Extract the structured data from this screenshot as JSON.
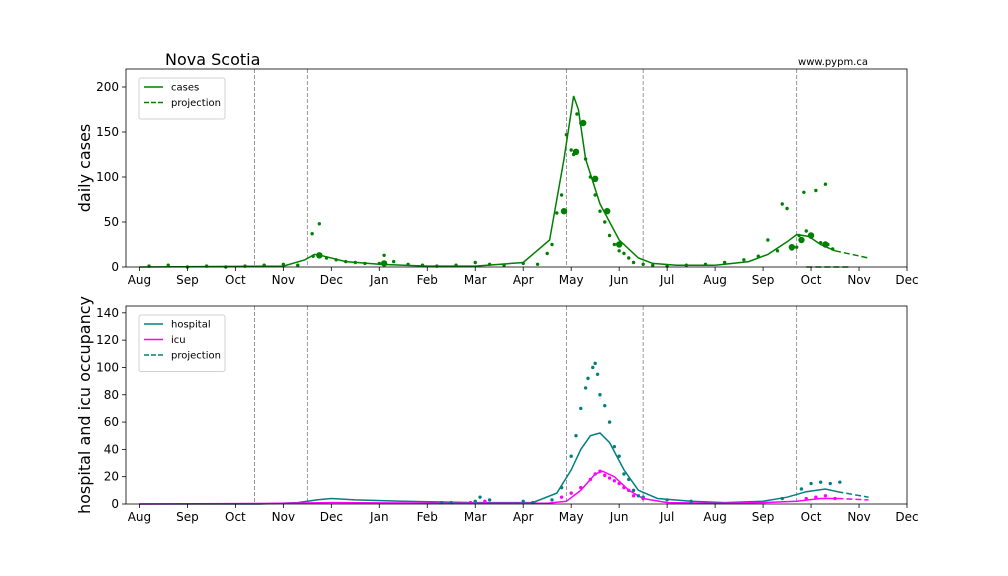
{
  "title": "Nova Scotia",
  "source": "www.pypm.ca",
  "colors": {
    "cases": "#008000",
    "hospital": "#008080",
    "icu": "#ff00ff",
    "vline": "#808080"
  },
  "x_ticks": [
    "Aug",
    "Sep",
    "Oct",
    "Nov",
    "Dec",
    "Jan",
    "Feb",
    "Mar",
    "Apr",
    "May",
    "Jun",
    "Jul",
    "Aug",
    "Sep",
    "Oct",
    "Nov",
    "Dec"
  ],
  "chart_data": [
    {
      "type": "line",
      "ylabel": "daily cases",
      "ylim": [
        0,
        220
      ],
      "yticks": [
        0,
        50,
        100,
        150,
        200
      ],
      "xlim_months": [
        -0.28,
        16.0
      ],
      "vlines_months": [
        2.4,
        3.5,
        8.9,
        10.5,
        13.7
      ],
      "legend": {
        "position": "top-left",
        "entries": [
          {
            "label": "cases",
            "color": "#008000",
            "style": "solid"
          },
          {
            "label": "projection",
            "color": "#008000",
            "style": "dashed"
          }
        ]
      },
      "series": [
        {
          "name": "cases",
          "kind": "line",
          "color": "#008000",
          "x": [
            0,
            3,
            3.45,
            3.65,
            3.85,
            4.3,
            5,
            6,
            7,
            8,
            8.55,
            8.85,
            9.05,
            9.15,
            9.3,
            9.6,
            10,
            10.4,
            10.7,
            11.2,
            12,
            12.7,
            13.1,
            13.5,
            13.7,
            13.95,
            14.2,
            14.5
          ],
          "y": [
            0,
            1,
            8,
            14,
            12,
            6,
            3,
            1,
            1,
            5,
            30,
            120,
            190,
            175,
            120,
            70,
            30,
            10,
            4,
            2,
            2,
            6,
            14,
            28,
            36,
            34,
            25,
            18
          ]
        },
        {
          "name": "projection",
          "kind": "dashed",
          "color": "#008000",
          "x": [
            14.5,
            15.2
          ],
          "y": [
            18,
            10
          ]
        },
        {
          "name": "projection-floor",
          "kind": "dashed",
          "color": "#008000",
          "x": [
            13.9,
            14.8
          ],
          "y": [
            0,
            0
          ]
        },
        {
          "name": "daily points",
          "kind": "dots",
          "color": "#008000",
          "x": [
            0.2,
            0.6,
            1.0,
            1.4,
            1.8,
            2.2,
            2.6,
            3.0,
            3.3,
            3.6,
            3.62,
            3.75,
            3.9,
            4.1,
            4.3,
            4.5,
            4.7,
            5.0,
            5.1,
            5.3,
            5.6,
            5.9,
            6.2,
            6.6,
            7.0,
            7.3,
            7.6,
            8.0,
            8.3,
            8.5,
            8.6,
            8.7,
            8.8,
            8.9,
            9.0,
            9.05,
            9.12,
            9.2,
            9.3,
            9.4,
            9.5,
            9.6,
            9.7,
            9.8,
            9.9,
            10.0,
            10.1,
            10.2,
            10.3,
            10.5,
            10.7,
            11.0,
            11.4,
            11.8,
            12.2,
            12.6,
            12.9,
            13.1,
            13.3,
            13.4,
            13.5,
            13.6,
            13.7,
            13.75,
            13.85,
            13.9,
            14.0,
            14.1,
            14.2,
            14.3,
            14.35,
            14.45
          ],
          "y": [
            1,
            2,
            0,
            1,
            0,
            1,
            2,
            3,
            2,
            37,
            12,
            48,
            10,
            8,
            6,
            5,
            4,
            4,
            13,
            6,
            3,
            2,
            1,
            2,
            5,
            3,
            2,
            4,
            3,
            15,
            25,
            60,
            80,
            147,
            130,
            125,
            170,
            160,
            120,
            100,
            80,
            62,
            50,
            35,
            25,
            18,
            15,
            10,
            5,
            3,
            2,
            1,
            2,
            3,
            5,
            8,
            12,
            30,
            18,
            70,
            65,
            20,
            22,
            35,
            83,
            40,
            33,
            85,
            27,
            92,
            25,
            20
          ]
        },
        {
          "name": "weekly points",
          "kind": "bigdots",
          "color": "#008000",
          "x": [
            3.75,
            5.1,
            8.85,
            9.1,
            9.25,
            9.5,
            9.75,
            10.0,
            13.6,
            13.8,
            14.0,
            14.3
          ],
          "y": [
            13,
            4,
            62,
            128,
            160,
            98,
            62,
            25,
            22,
            30,
            35,
            25
          ]
        }
      ]
    },
    {
      "type": "line",
      "ylabel": "hospital and icu occupancy",
      "ylim": [
        0,
        145
      ],
      "yticks": [
        0,
        20,
        40,
        60,
        80,
        100,
        120,
        140
      ],
      "xlim_months": [
        -0.28,
        16.0
      ],
      "vlines_months": [
        2.4,
        3.5,
        8.9,
        10.5,
        13.7
      ],
      "legend": {
        "position": "top-left",
        "entries": [
          {
            "label": "hospital",
            "color": "#008080",
            "style": "solid"
          },
          {
            "label": "icu",
            "color": "#ff00ff",
            "style": "solid"
          },
          {
            "label": "projection",
            "color": "#008080",
            "style": "dashed"
          }
        ]
      },
      "series": [
        {
          "name": "hospital",
          "kind": "line",
          "color": "#008080",
          "x": [
            0,
            2.5,
            3.3,
            3.7,
            4.0,
            4.5,
            5.5,
            7,
            8.2,
            8.7,
            9.0,
            9.2,
            9.4,
            9.6,
            9.8,
            10.1,
            10.4,
            10.8,
            11.5,
            12.2,
            13,
            13.5,
            13.9,
            14.3,
            14.55
          ],
          "y": [
            0,
            0,
            1,
            3,
            4,
            3,
            2,
            1,
            1,
            8,
            25,
            40,
            50,
            52,
            45,
            25,
            10,
            4,
            2,
            1,
            2,
            5,
            9,
            11,
            9
          ]
        },
        {
          "name": "icu",
          "kind": "line",
          "color": "#ff00ff",
          "x": [
            0,
            3,
            4,
            7,
            8.5,
            8.9,
            9.2,
            9.5,
            9.65,
            9.9,
            10.2,
            10.5,
            11,
            12,
            13,
            13.7,
            14.2,
            14.55
          ],
          "y": [
            0,
            0.5,
            1,
            0.5,
            0.5,
            2,
            10,
            22,
            24,
            20,
            10,
            4,
            1,
            0.5,
            1,
            2,
            4,
            4
          ]
        },
        {
          "name": "projection",
          "kind": "dashed",
          "color": "#008080",
          "x": [
            14.55,
            15.2
          ],
          "y": [
            9,
            5
          ]
        },
        {
          "name": "icu projection",
          "kind": "dashed",
          "color": "#ff00ff",
          "x": [
            14.55,
            15.2
          ],
          "y": [
            4,
            3
          ]
        },
        {
          "name": "hospital points",
          "kind": "dots",
          "color": "#008080",
          "x": [
            6.3,
            6.5,
            7.0,
            7.1,
            7.3,
            8.0,
            8.2,
            8.6,
            8.8,
            9.0,
            9.1,
            9.2,
            9.3,
            9.35,
            9.45,
            9.5,
            9.55,
            9.6,
            9.7,
            9.8,
            9.9,
            10.0,
            10.1,
            10.2,
            10.3,
            10.4,
            10.5,
            11.0,
            11.5,
            13.4,
            13.8,
            14.0,
            14.2,
            14.4,
            14.6
          ],
          "y": [
            1,
            1,
            2,
            5,
            3,
            2,
            1,
            3,
            12,
            35,
            50,
            70,
            85,
            92,
            100,
            103,
            95,
            80,
            72,
            60,
            42,
            35,
            22,
            18,
            10,
            6,
            5,
            3,
            2,
            4,
            11,
            15,
            16,
            15,
            16
          ]
        },
        {
          "name": "icu points",
          "kind": "dots",
          "color": "#ff00ff",
          "x": [
            6.9,
            7.2,
            8.8,
            9.0,
            9.2,
            9.4,
            9.5,
            9.6,
            9.7,
            9.8,
            9.9,
            10.0,
            10.1,
            10.2,
            10.3,
            10.5,
            13.9,
            14.1,
            14.3,
            14.5
          ],
          "y": [
            1,
            2,
            5,
            8,
            12,
            18,
            22,
            24,
            21,
            19,
            17,
            15,
            12,
            10,
            6,
            4,
            4,
            5,
            6,
            4
          ]
        }
      ]
    }
  ]
}
